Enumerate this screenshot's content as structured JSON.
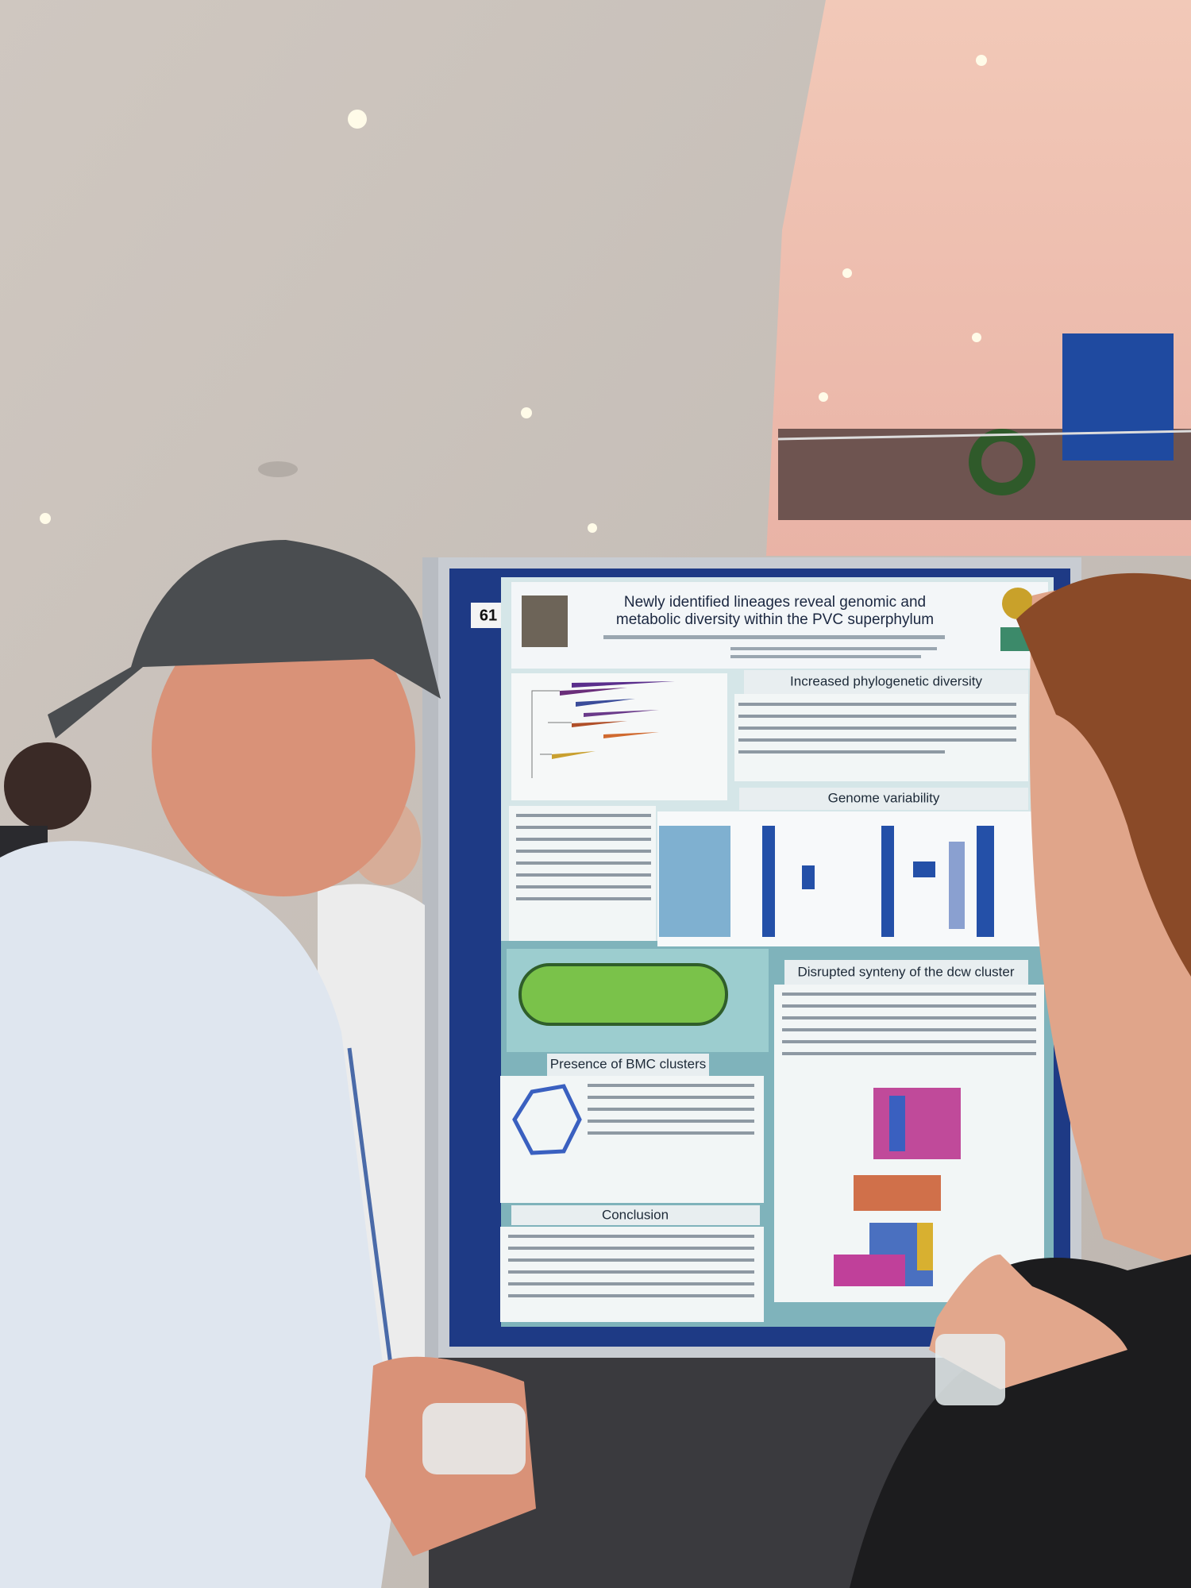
{
  "poster": {
    "number": "61",
    "title_lines": [
      "Newly identified lineages reveal genomic and",
      "metabolic diversity within the PVC superphylum"
    ],
    "sections": [
      "Increased phylogenetic diversity",
      "Genome variability",
      "Disrupted synteny of the dcw cluster",
      "Presence of BMC clusters",
      "Conclusion"
    ]
  }
}
